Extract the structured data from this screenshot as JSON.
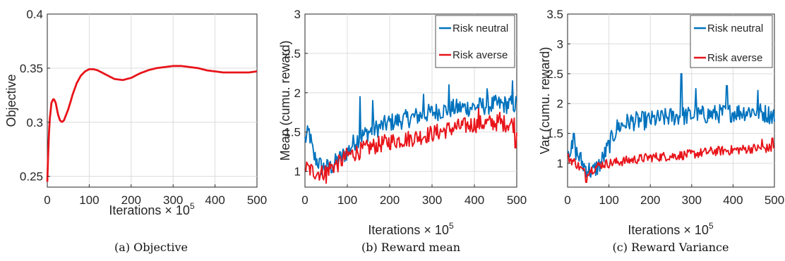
{
  "chart_data": [
    {
      "type": "line",
      "caption": "(a) Objective",
      "xlabel": "Iterations × 10",
      "xlabel_exp": "5",
      "ylabel": "Objective",
      "xlim": [
        0,
        500
      ],
      "ylim": [
        0.24,
        0.4
      ],
      "xticks": [
        0,
        100,
        200,
        300,
        400,
        500
      ],
      "yticks": [
        0.25,
        0.3,
        0.35,
        0.4
      ],
      "ytick_labels": [
        "0.25",
        "0.3",
        "0.35",
        "0.4"
      ],
      "grid": true,
      "series": [
        {
          "color": "#e8141a",
          "style": "smooth",
          "x": [
            0,
            2,
            5,
            10,
            15,
            20,
            25,
            30,
            35,
            40,
            50,
            60,
            70,
            80,
            90,
            100,
            110,
            120,
            140,
            160,
            180,
            200,
            220,
            240,
            260,
            280,
            300,
            320,
            340,
            360,
            380,
            400,
            420,
            440,
            460,
            480,
            500
          ],
          "y": [
            0.245,
            0.27,
            0.3,
            0.318,
            0.322,
            0.318,
            0.308,
            0.302,
            0.3,
            0.302,
            0.312,
            0.325,
            0.336,
            0.343,
            0.347,
            0.349,
            0.349,
            0.348,
            0.344,
            0.34,
            0.339,
            0.341,
            0.345,
            0.348,
            0.35,
            0.351,
            0.352,
            0.352,
            0.351,
            0.35,
            0.348,
            0.347,
            0.346,
            0.346,
            0.346,
            0.346,
            0.347
          ]
        }
      ]
    },
    {
      "type": "line",
      "caption": "(b) Reward mean",
      "xlabel": "Iterations × 10",
      "xlabel_exp": "5",
      "ylabel": "Mean (cumu. reward)",
      "xlim": [
        0,
        500
      ],
      "ylim": [
        0.8,
        3
      ],
      "xticks": [
        0,
        100,
        200,
        300,
        400,
        500
      ],
      "yticks": [
        1,
        1.5,
        2,
        2.5,
        3
      ],
      "ytick_labels": [
        "1",
        "1.5",
        "2",
        "2.5",
        "3"
      ],
      "grid": true,
      "legend_position": "top-right",
      "series": [
        {
          "name": "Risk neutral",
          "color": "#0072bd",
          "style": "noisy",
          "x": [
            0,
            10,
            20,
            40,
            60,
            80,
            100,
            120,
            150,
            200,
            250,
            300,
            350,
            400,
            450,
            500
          ],
          "y": [
            1.4,
            1.5,
            1.2,
            1.05,
            1.05,
            1.15,
            1.25,
            1.4,
            1.5,
            1.62,
            1.68,
            1.75,
            1.8,
            1.82,
            1.85,
            1.85
          ],
          "noise_amplitude": 0.12,
          "spikes": [
            [
              130,
              1.95
            ],
            [
              160,
              1.9
            ],
            [
              280,
              1.98
            ],
            [
              340,
              2.1
            ],
            [
              430,
              2.05
            ],
            [
              490,
              2.15
            ]
          ]
        },
        {
          "name": "Risk averse",
          "color": "#e8141a",
          "style": "noisy",
          "x": [
            0,
            20,
            40,
            60,
            80,
            100,
            150,
            200,
            250,
            300,
            350,
            400,
            450,
            500
          ],
          "y": [
            1.05,
            1.0,
            0.98,
            1.05,
            1.1,
            1.2,
            1.3,
            1.38,
            1.42,
            1.48,
            1.55,
            1.6,
            1.62,
            1.6
          ],
          "noise_amplitude": 0.11,
          "spikes": [
            [
              50,
              0.85
            ],
            [
              410,
              1.8
            ],
            [
              460,
              1.75
            ],
            [
              497,
              1.3
            ]
          ]
        }
      ]
    },
    {
      "type": "line",
      "caption": "(c) Reward Variance",
      "xlabel": "Iterations × 10",
      "xlabel_exp": "5",
      "ylabel": "Var (cumu. reward)",
      "xlim": [
        0,
        500
      ],
      "ylim": [
        0.6,
        3.5
      ],
      "xticks": [
        0,
        100,
        200,
        300,
        400,
        500
      ],
      "yticks": [
        1,
        1.5,
        2,
        2.5,
        3,
        3.5
      ],
      "ytick_labels": [
        "1",
        "1.5",
        "2",
        "2.5",
        "3",
        "3.5"
      ],
      "grid": true,
      "legend_position": "top-right",
      "series": [
        {
          "name": "Risk neutral",
          "color": "#0072bd",
          "style": "noisy",
          "x": [
            0,
            20,
            40,
            60,
            80,
            100,
            120,
            150,
            200,
            250,
            300,
            350,
            400,
            450,
            500
          ],
          "y": [
            1.25,
            1.2,
            0.95,
            0.85,
            1.0,
            1.3,
            1.6,
            1.7,
            1.72,
            1.78,
            1.8,
            1.82,
            1.85,
            1.88,
            1.8
          ],
          "noise_amplitude": 0.16,
          "spikes": [
            [
              275,
              2.5
            ],
            [
              310,
              2.25
            ],
            [
              385,
              2.3
            ],
            [
              460,
              2.22
            ],
            [
              15,
              1.5
            ]
          ]
        },
        {
          "name": "Risk averse",
          "color": "#e8141a",
          "style": "noisy",
          "x": [
            0,
            20,
            40,
            60,
            80,
            100,
            150,
            200,
            250,
            300,
            350,
            400,
            450,
            500
          ],
          "y": [
            1.1,
            1.0,
            0.85,
            0.9,
            0.98,
            1.0,
            1.05,
            1.1,
            1.12,
            1.15,
            1.2,
            1.22,
            1.25,
            1.25
          ],
          "noise_amplitude": 0.08,
          "spikes": [
            [
              45,
              0.68
            ],
            [
              470,
              1.4
            ],
            [
              495,
              1.42
            ]
          ]
        }
      ]
    }
  ]
}
